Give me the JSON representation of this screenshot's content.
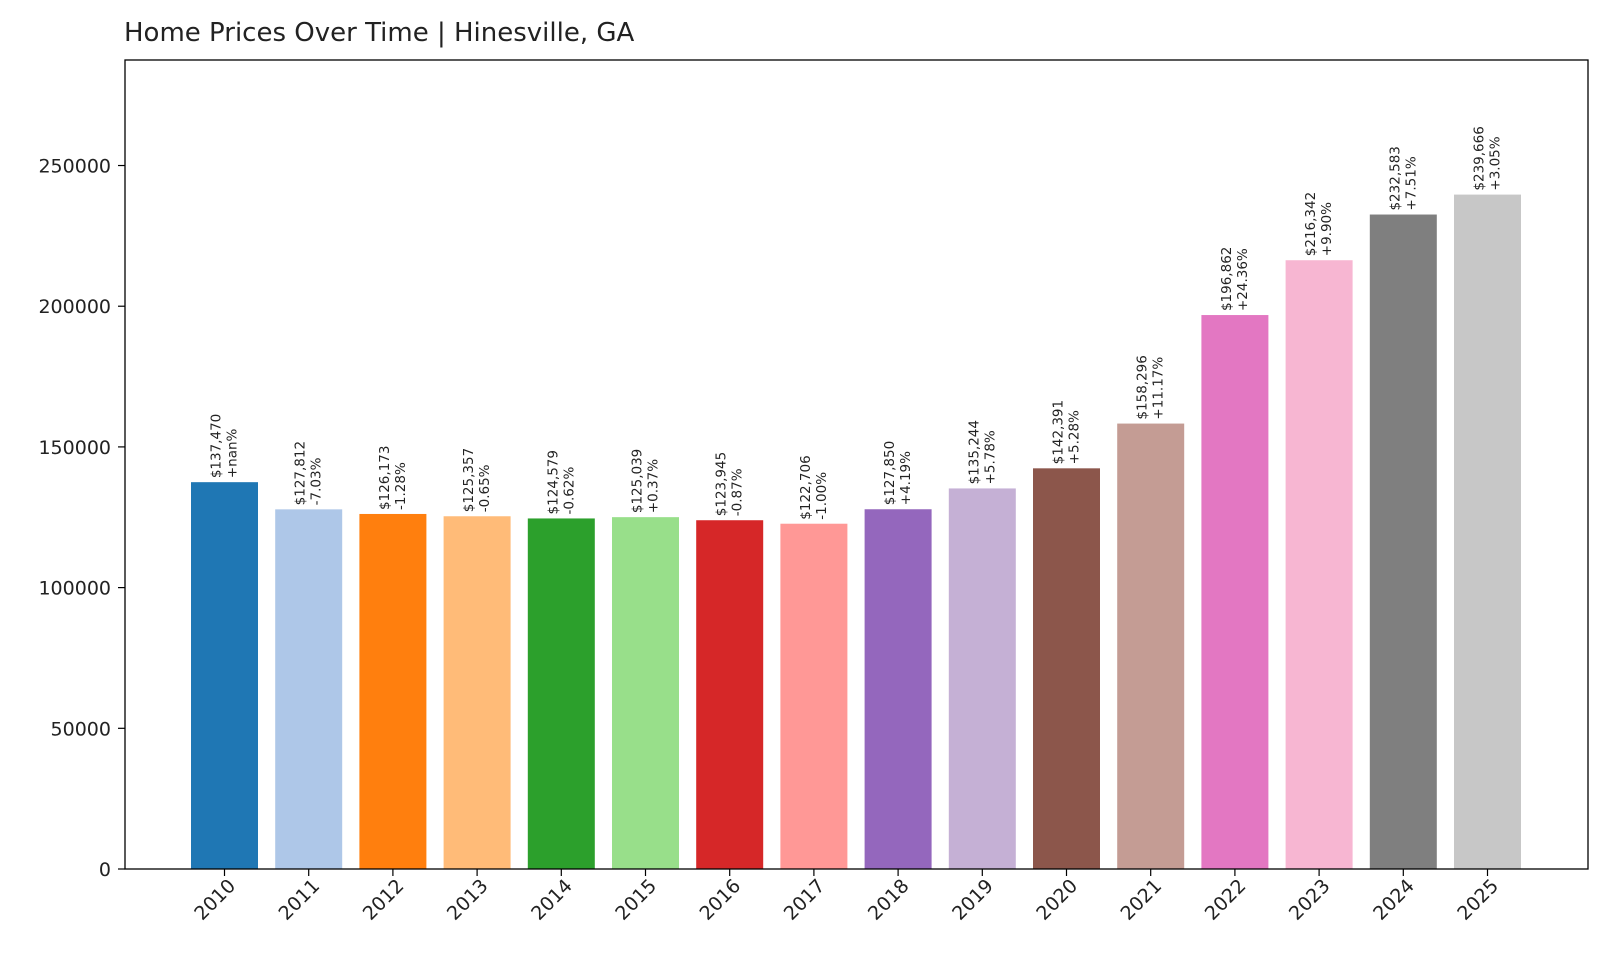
{
  "chart_data": {
    "type": "bar",
    "title": "Home Prices Over Time | Hinesville, GA",
    "xlabel": "",
    "ylabel": "",
    "ylim": [
      0,
      287500
    ],
    "yticks": [
      0,
      50000,
      100000,
      150000,
      200000,
      250000
    ],
    "ytick_labels": [
      "0",
      "50000",
      "100000",
      "150000",
      "200000",
      "250000"
    ],
    "grid": false,
    "categories": [
      "2010",
      "2011",
      "2012",
      "2013",
      "2014",
      "2015",
      "2016",
      "2017",
      "2018",
      "2019",
      "2020",
      "2021",
      "2022",
      "2023",
      "2024",
      "2025"
    ],
    "values": [
      137470,
      127812,
      126173,
      125357,
      124579,
      125039,
      123945,
      122706,
      127850,
      135244,
      142391,
      158296,
      196862,
      216342,
      232583,
      239666
    ],
    "value_labels": [
      "$137,470",
      "$127,812",
      "$126,173",
      "$125,357",
      "$124,579",
      "$125,039",
      "$123,945",
      "$122,706",
      "$127,850",
      "$135,244",
      "$142,391",
      "$158,296",
      "$196,862",
      "$216,342",
      "$232,583",
      "$239,666"
    ],
    "change_labels": [
      "+nan%",
      "-7.03%",
      "-1.28%",
      "-0.65%",
      "-0.62%",
      "+0.37%",
      "-0.87%",
      "-1.00%",
      "+4.19%",
      "+5.78%",
      "+5.28%",
      "+11.17%",
      "+24.36%",
      "+9.90%",
      "+7.51%",
      "+3.05%"
    ],
    "colors": [
      "#1f77b4",
      "#aec7e8",
      "#ff7f0e",
      "#ffbb78",
      "#2ca02c",
      "#98df8a",
      "#d62728",
      "#ff9896",
      "#9467bd",
      "#c5b0d5",
      "#8c564b",
      "#c49c94",
      "#e377c2",
      "#f7b6d2",
      "#7f7f7f",
      "#c7c7c7"
    ]
  }
}
